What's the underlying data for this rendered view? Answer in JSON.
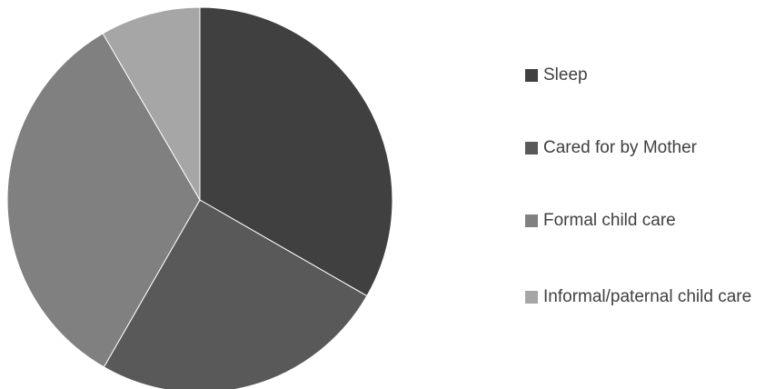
{
  "chart_data": {
    "type": "pie",
    "title": "",
    "categories": [
      "Sleep",
      "Cared for by Mother",
      "Formal child care",
      "Informal/paternal child care"
    ],
    "values": [
      33.3,
      25.0,
      33.3,
      8.4
    ],
    "colors": [
      "#404040",
      "#595959",
      "#808080",
      "#a6a6a6"
    ],
    "legend_position": "right",
    "start_angle_deg": 0,
    "direction": "clockwise"
  }
}
